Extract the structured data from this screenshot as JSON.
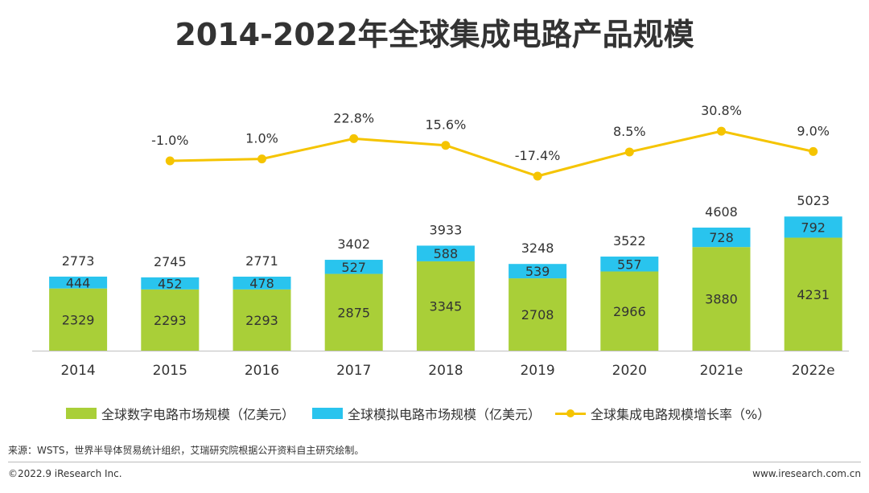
{
  "title": "2014-2022年全球集成电路产品规模",
  "chart_data": {
    "type": "bar",
    "stacked": true,
    "categories": [
      "2014",
      "2015",
      "2016",
      "2017",
      "2018",
      "2019",
      "2020",
      "2021e",
      "2022e"
    ],
    "series": [
      {
        "name": "全球数字电路市场规模（亿美元）",
        "type": "bar",
        "color": "#a9cf38",
        "values": [
          2329,
          2293,
          2293,
          2875,
          3345,
          2708,
          2966,
          3880,
          4231
        ]
      },
      {
        "name": "全球模拟电路市场规模（亿美元）",
        "type": "bar",
        "color": "#29c4ee",
        "values": [
          444,
          452,
          478,
          527,
          588,
          539,
          557,
          728,
          792
        ]
      },
      {
        "name": "全球集成电路规模增长率（%）",
        "type": "line",
        "color": "#f5c400",
        "values": [
          null,
          -1.0,
          1.0,
          22.8,
          15.6,
          -17.4,
          8.5,
          30.8,
          9.0
        ]
      }
    ],
    "totals": [
      2773,
      2745,
      2771,
      3402,
      3933,
      3248,
      3522,
      4608,
      5023
    ],
    "value_labels": {
      "digital": [
        "2329",
        "2293",
        "2293",
        "2875",
        "3345",
        "2708",
        "2966",
        "3880",
        "4231"
      ],
      "analog": [
        "444",
        "452",
        "478",
        "527",
        "588",
        "539",
        "557",
        "728",
        "792"
      ],
      "totals": [
        "2773",
        "2745",
        "2771",
        "3402",
        "3933",
        "3248",
        "3522",
        "4608",
        "5023"
      ],
      "growth": [
        "",
        "-1.0%",
        "1.0%",
        "22.8%",
        "15.6%",
        "-17.4%",
        "8.5%",
        "30.8%",
        "9.0%"
      ]
    },
    "legend_position": "bottom",
    "grid": false
  },
  "legend": {
    "digital": "全球数字电路市场规模（亿美元）",
    "analog": "全球模拟电路市场规模（亿美元）",
    "growth": "全球集成电路规模增长率（%）"
  },
  "colors": {
    "digital": "#a9cf38",
    "analog": "#29c4ee",
    "growth": "#f5c400"
  },
  "footer": {
    "source": "来源：WSTS，世界半导体贸易统计组织，艾瑞研究院根据公开资料自主研究绘制。",
    "copyright": "©2022.9 iResearch Inc.",
    "website": "www.iresearch.com.cn"
  }
}
